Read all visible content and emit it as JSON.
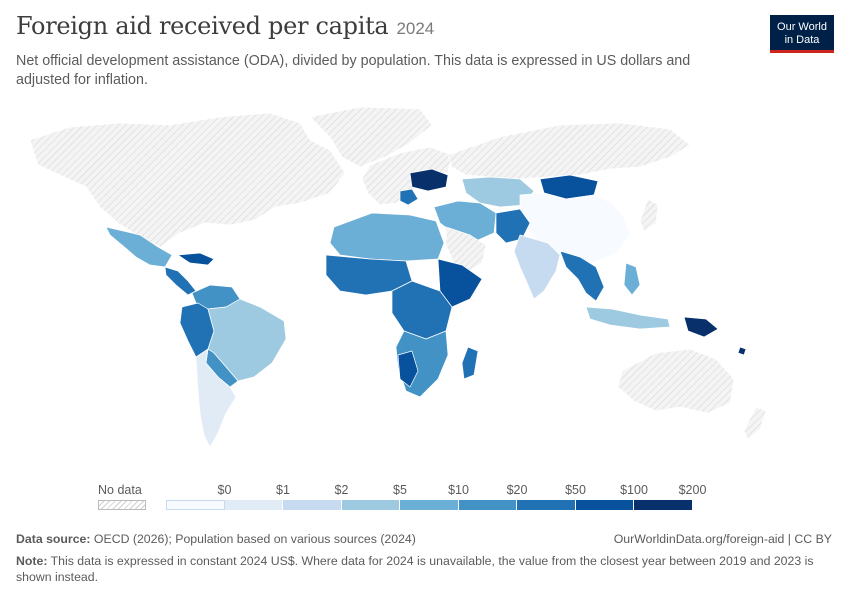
{
  "header": {
    "title": "Foreign aid received per capita",
    "year": "2024",
    "subtitle": "Net official development assistance (ODA), divided by population. This data is expressed in US dollars and adjusted for inflation."
  },
  "logo": {
    "line1": "Our World",
    "line2": "in Data"
  },
  "legend": {
    "no_data_label": "No data",
    "ticks": [
      "$0",
      "$1",
      "$2",
      "$5",
      "$10",
      "$20",
      "$50",
      "$100",
      "$200"
    ],
    "colors": [
      "#f7fbff",
      "#e0ebf6",
      "#c6dbef",
      "#9ecae1",
      "#6baed6",
      "#4292c6",
      "#2171b5",
      "#08519c",
      "#08306b"
    ]
  },
  "footer": {
    "source_label": "Data source:",
    "source_text": "OECD (2026); Population based on various sources (2024)",
    "note_label": "Note:",
    "note_text": "This data is expressed in constant 2024 US$. Where data for 2024 is unavailable, the value from the closest year between 2019 and 2023 is shown instead.",
    "credit": "OurWorldinData.org/foreign-aid | CC BY"
  },
  "map_colors": {
    "no_data": "#f2f2f2",
    "border": "#ffffff"
  }
}
